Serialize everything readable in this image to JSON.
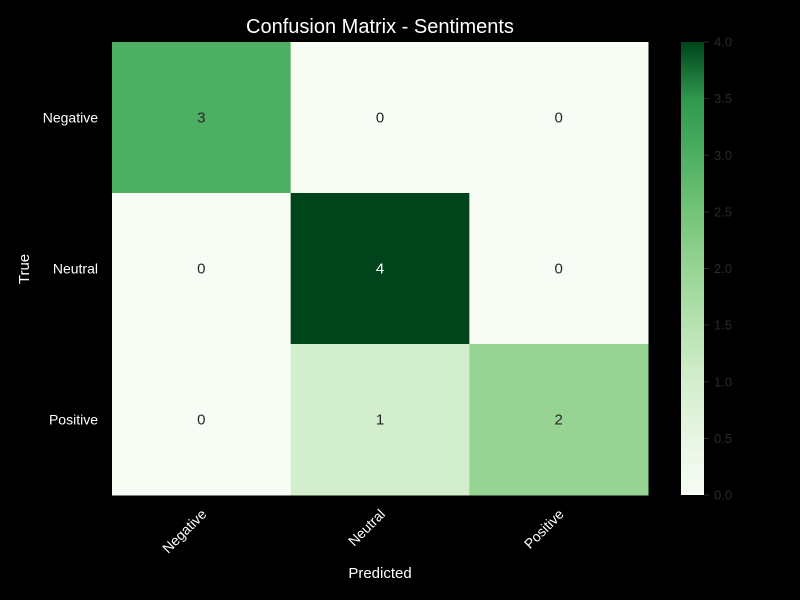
{
  "chart_data": {
    "type": "heatmap",
    "title": "Confusion Matrix - Sentiments",
    "xlabel": "Predicted",
    "ylabel": "True",
    "x_categories": [
      "Negative",
      "Neutral",
      "Positive"
    ],
    "y_categories": [
      "Negative",
      "Neutral",
      "Positive"
    ],
    "values": [
      [
        3,
        0,
        0
      ],
      [
        0,
        4,
        0
      ],
      [
        0,
        1,
        2
      ]
    ],
    "colorbar": {
      "range": [
        0,
        4
      ],
      "ticks": [
        "0.0",
        "0.5",
        "1.0",
        "1.5",
        "2.0",
        "2.5",
        "3.0",
        "3.5",
        "4.0"
      ],
      "colormap": "Greens",
      "low_color": "#f7fcf5",
      "high_color": "#00441b"
    },
    "grid": false,
    "background_color": "#000000"
  }
}
